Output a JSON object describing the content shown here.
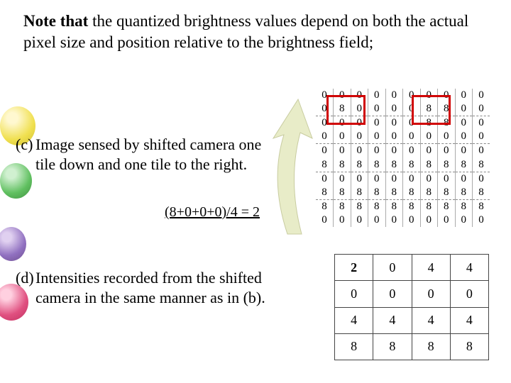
{
  "note": {
    "bold": "Note that",
    "rest": " the quantized brightness values depend on both the actual pixel size and position relative to the brightness field;"
  },
  "item_c": {
    "label": "(c)",
    "text": "Image sensed by shifted camera one tile down and one tile to the right."
  },
  "formula": "(8+0+0+0)/4 = 2",
  "item_d": {
    "label": "(d)",
    "text": "Intensities recorded from the shifted camera in the same manner as in (b)."
  },
  "grid_c": {
    "rows": [
      [
        "0",
        "0",
        "0",
        "0",
        "0",
        "0",
        "0",
        "0",
        "0",
        "0"
      ],
      [
        "0",
        "8",
        "0",
        "0",
        "0",
        "0",
        "8",
        "8",
        "0",
        "0"
      ],
      [
        "0",
        "0",
        "0",
        "0",
        "0",
        "0",
        "8",
        "8",
        "0",
        "0"
      ],
      [
        "0",
        "0",
        "0",
        "0",
        "0",
        "0",
        "0",
        "0",
        "0",
        "0"
      ],
      [
        "0",
        "0",
        "0",
        "0",
        "0",
        "0",
        "0",
        "0",
        "0",
        "0"
      ],
      [
        "8",
        "8",
        "8",
        "8",
        "8",
        "8",
        "8",
        "8",
        "8",
        "8"
      ],
      [
        "0",
        "0",
        "0",
        "0",
        "0",
        "0",
        "0",
        "0",
        "0",
        "0"
      ],
      [
        "8",
        "8",
        "8",
        "8",
        "8",
        "8",
        "8",
        "8",
        "8",
        "8"
      ],
      [
        "8",
        "8",
        "8",
        "8",
        "8",
        "8",
        "8",
        "8",
        "8",
        "8"
      ],
      [
        "0",
        "0",
        "0",
        "0",
        "0",
        "0",
        "0",
        "0",
        "0",
        "0"
      ]
    ],
    "dash_after": [
      1,
      3,
      5,
      7
    ],
    "highlight_color": "#d00000",
    "border_color": "#aaaaaa"
  },
  "grid_d": {
    "rows": [
      [
        "2",
        "0",
        "4",
        "4"
      ],
      [
        "0",
        "0",
        "0",
        "0"
      ],
      [
        "4",
        "4",
        "4",
        "4"
      ],
      [
        "8",
        "8",
        "8",
        "8"
      ]
    ],
    "border_color": "#444444"
  },
  "arrow": {
    "fill": "#e8ecc8",
    "stroke": "#c8cca0"
  }
}
